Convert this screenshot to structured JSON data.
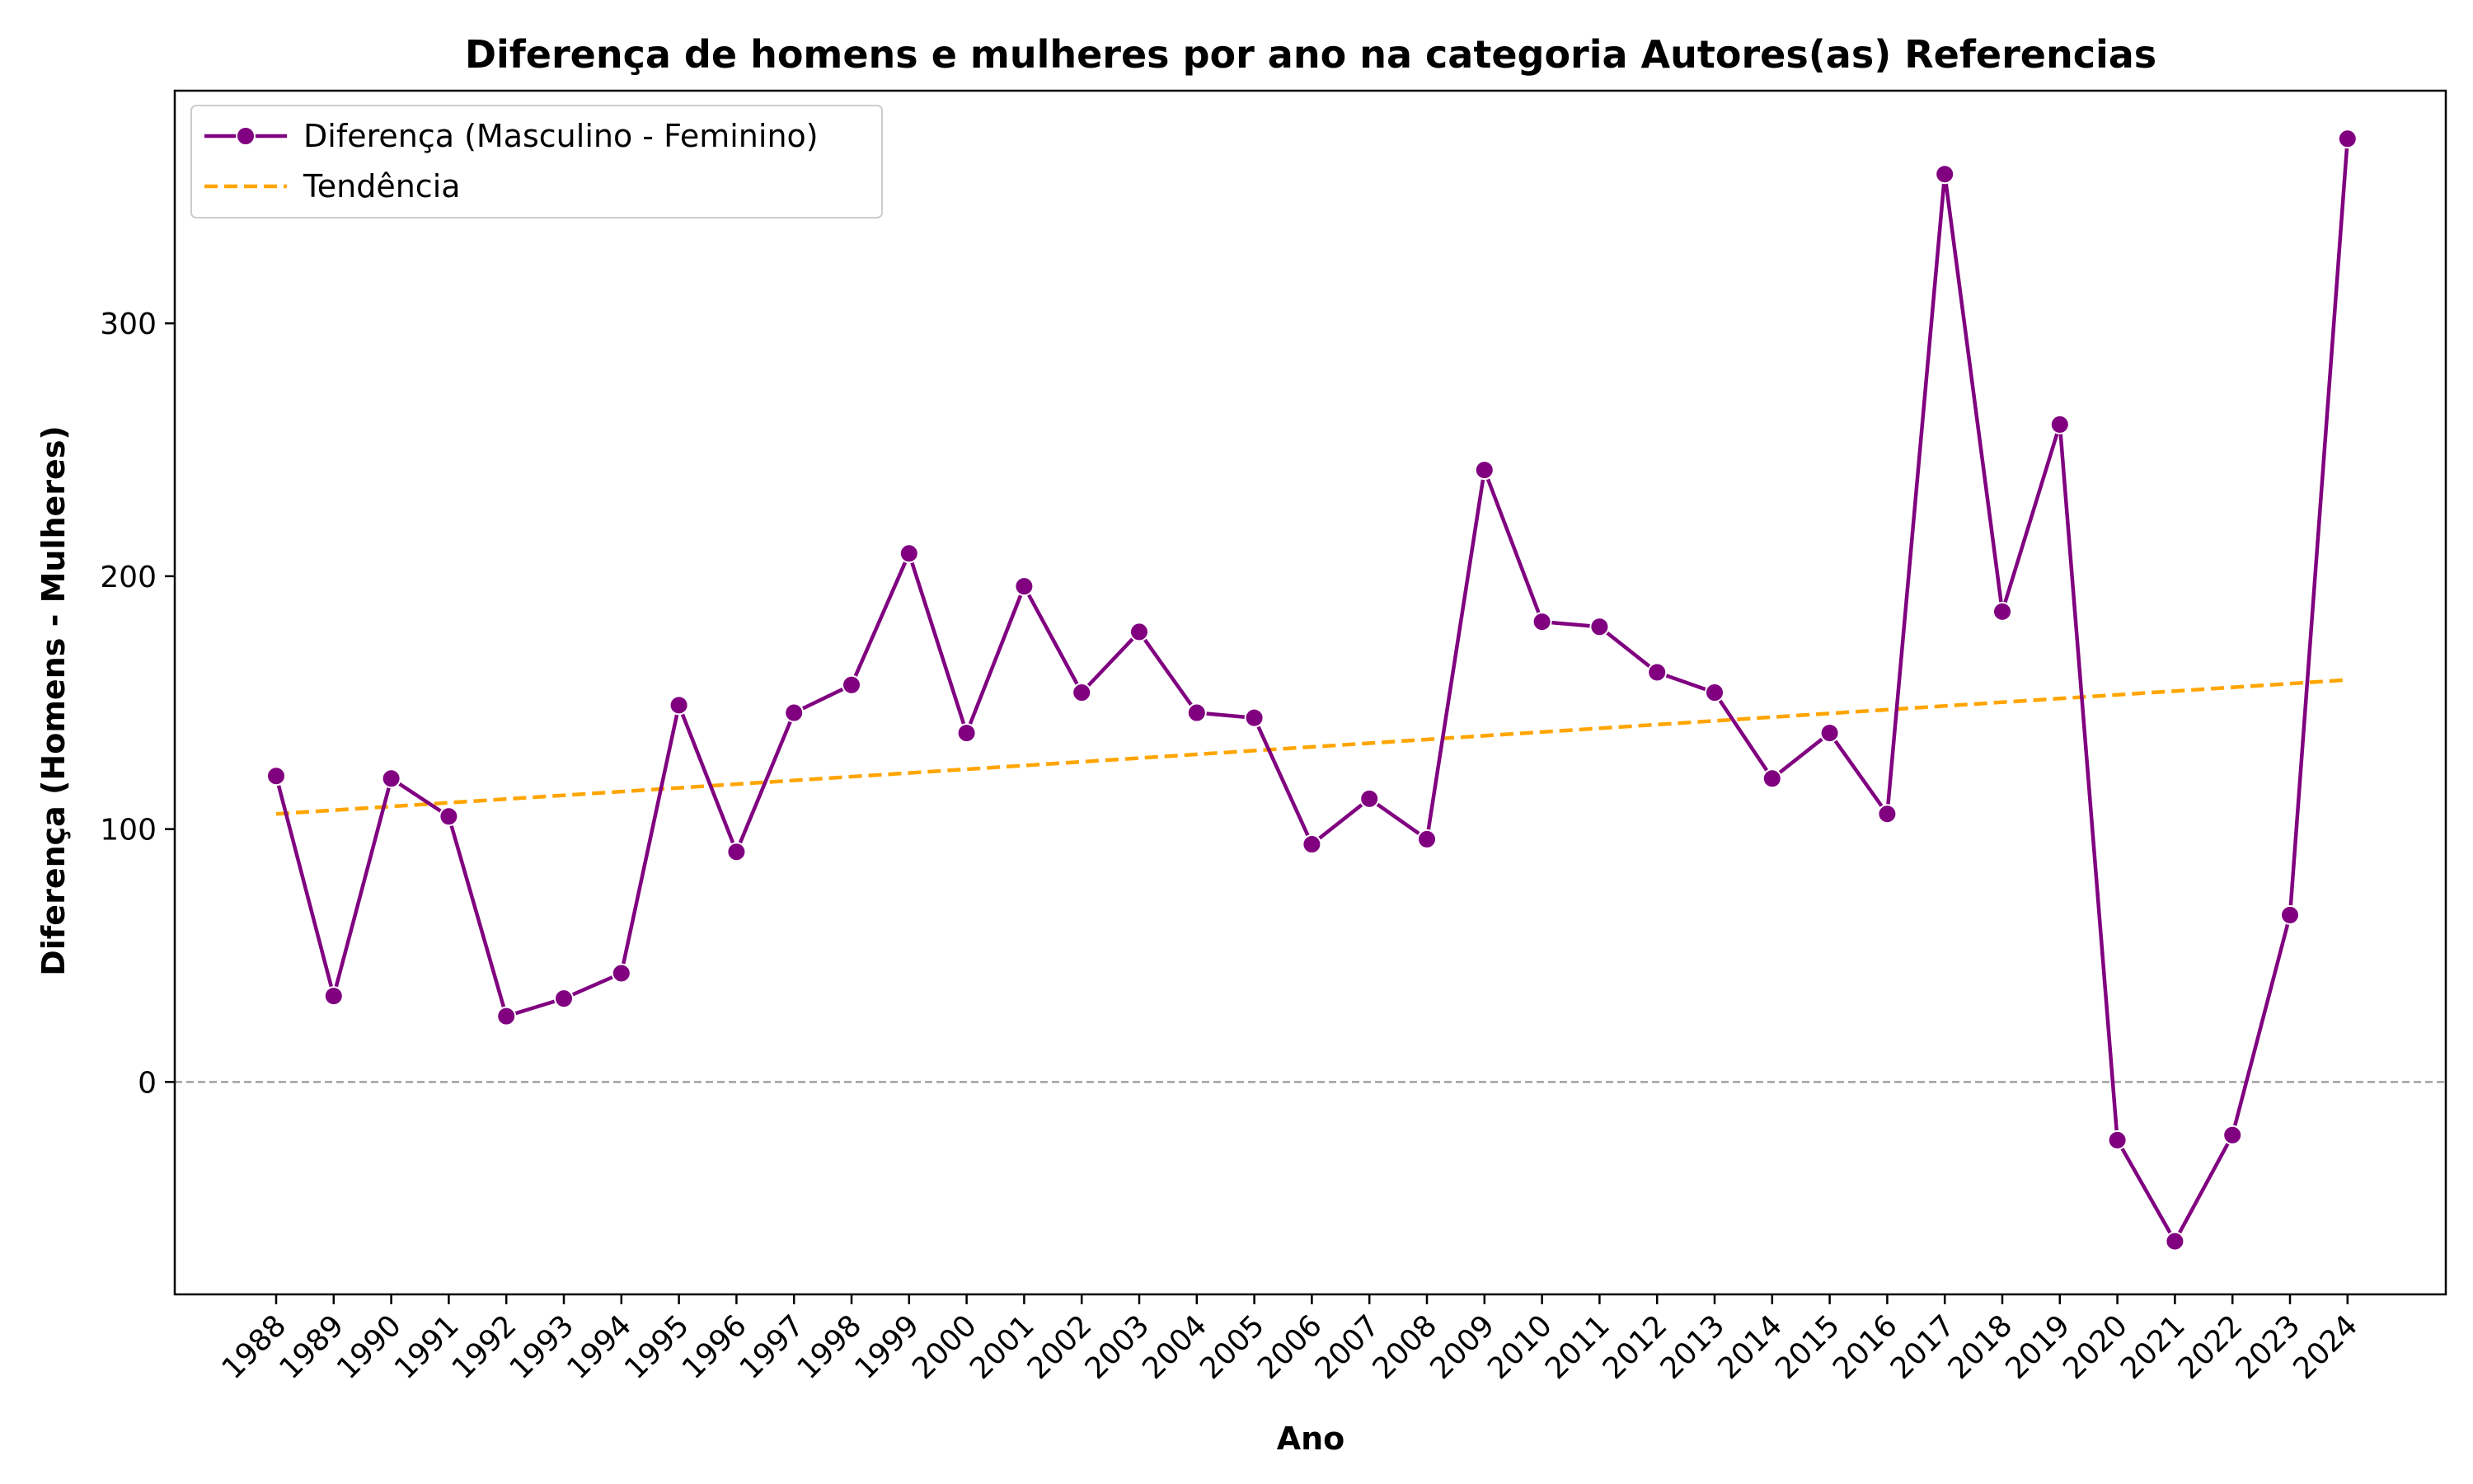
{
  "chart_data": {
    "type": "line",
    "title": "Diferença de homens e mulheres por ano na categoria Autores(as) Referencias",
    "xlabel": "Ano",
    "ylabel": "Diferença (Homens - Mulheres)",
    "ylim": [
      -84,
      392
    ],
    "y_ticks": [
      0,
      100,
      200,
      300
    ],
    "grid": false,
    "zero_reference_line": true,
    "legend_position": "top-left",
    "x": [
      1988,
      1989,
      1990,
      1991,
      1992,
      1993,
      1994,
      1995,
      1996,
      1997,
      1998,
      1999,
      2000,
      2001,
      2002,
      2003,
      2004,
      2005,
      2006,
      2007,
      2008,
      2009,
      2010,
      2011,
      2012,
      2013,
      2014,
      2015,
      2016,
      2017,
      2018,
      2019,
      2020,
      2021,
      2022,
      2023,
      2024
    ],
    "x_tick_labels": [
      "1988",
      "1989",
      "1990",
      "1991",
      "1992",
      "1993",
      "1994",
      "1995",
      "1996",
      "1997",
      "1998",
      "1999",
      "2000",
      "2001",
      "2002",
      "2003",
      "2004",
      "2005",
      "2006",
      "2007",
      "2008",
      "2009",
      "2010",
      "2011",
      "2012",
      "2013",
      "2014",
      "2015",
      "2016",
      "2017",
      "2018",
      "2019",
      "2020",
      "2021",
      "2022",
      "2023",
      "2024"
    ],
    "series": [
      {
        "name": "Diferença (Masculino - Feminino)",
        "style": "line-with-markers",
        "color": "#800080",
        "values": [
          121,
          34,
          120,
          105,
          26,
          33,
          43,
          149,
          91,
          146,
          157,
          209,
          138,
          196,
          154,
          178,
          146,
          144,
          94,
          112,
          96,
          242,
          182,
          180,
          162,
          154,
          120,
          138,
          106,
          359,
          186,
          260,
          -23,
          -63,
          -21,
          66,
          373
        ]
      },
      {
        "name": "Tendência",
        "style": "dashed",
        "color": "#ffa500",
        "start": 106,
        "end": 159
      }
    ]
  }
}
